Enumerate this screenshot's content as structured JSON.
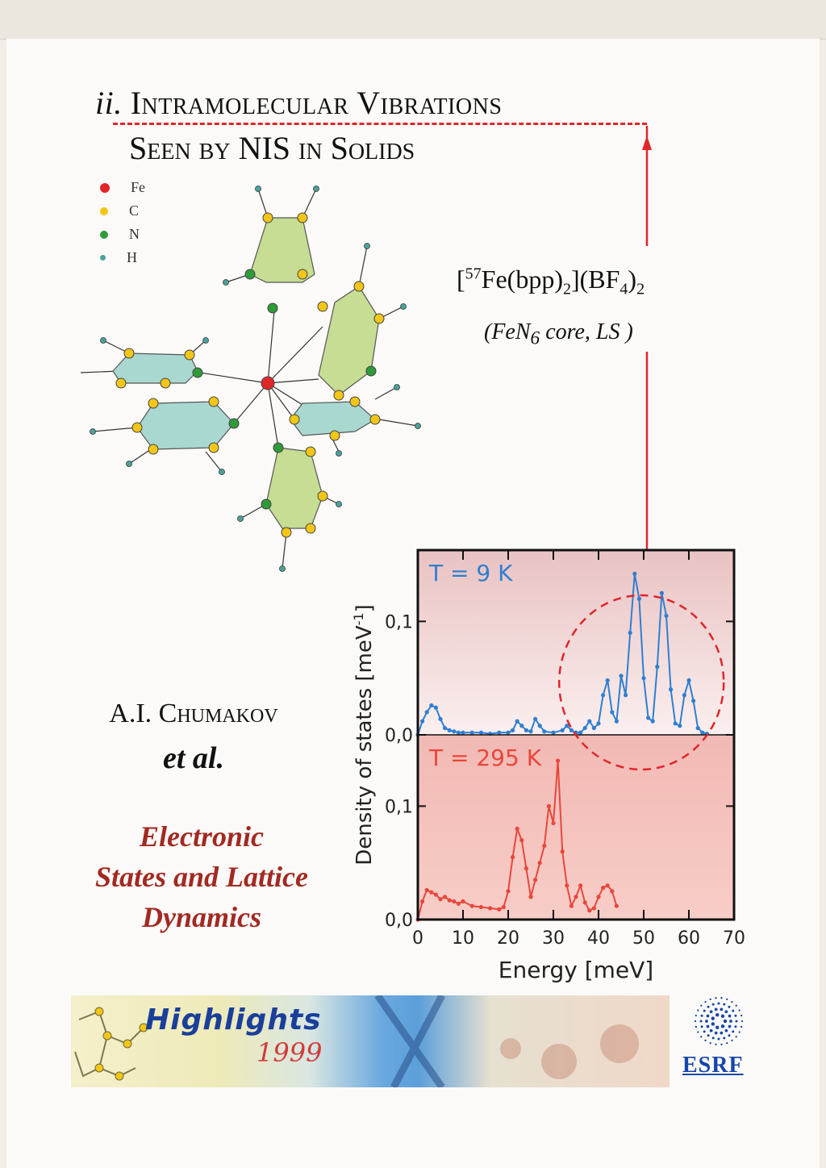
{
  "heading": {
    "prefix": "ii.",
    "line1": "Intramolecular Vibrations",
    "line2": "Seen by NIS in Solids"
  },
  "compound": {
    "iso": "57",
    "main": "Fe(bpp)",
    "sub1": "2",
    "mid": "](BF",
    "sub2": "4",
    "close": ")",
    "sub3": "2",
    "core_text": "(FeN",
    "core_sub": "6",
    "core_tail": " core, LS )"
  },
  "legend": [
    {
      "label": "Fe",
      "color": "#e1262a"
    },
    {
      "label": "C",
      "color": "#f2c617"
    },
    {
      "label": "N",
      "color": "#2f9a3a"
    },
    {
      "label": "H",
      "color": "#4aa39a"
    }
  ],
  "author": {
    "name": "A.I. Chumakov",
    "etal": "et al."
  },
  "subject_lines": [
    "Electronic",
    "States and Lattice",
    "Dynamics"
  ],
  "banner": {
    "title": "Highlights",
    "year": "1999"
  },
  "logo": {
    "text": "ESRF"
  },
  "chart_data": {
    "type": "line",
    "xlabel": "Energy [meV]",
    "ylabel": "Density of states [meV",
    "ylabel_sup": "-1",
    "ylabel_close": "]",
    "x_ticks": [
      "0",
      "10",
      "20",
      "30",
      "40",
      "50",
      "60",
      "70"
    ],
    "xlim": [
      0,
      70
    ],
    "panels": [
      {
        "name": "T = 9 K",
        "color": "#2f7fd0",
        "ylim": [
          0,
          0.16
        ],
        "y_ticks": [
          "0,0",
          "0,1"
        ],
        "x": [
          0,
          1,
          2,
          3,
          4,
          5,
          6,
          7,
          8,
          9,
          10,
          12,
          14,
          16,
          18,
          20,
          21,
          22,
          23,
          24,
          25,
          26,
          27,
          28,
          30,
          32,
          33,
          34,
          35,
          36,
          37,
          38,
          39,
          40,
          41,
          42,
          43,
          44,
          45,
          46,
          47,
          48,
          49,
          50,
          51,
          52,
          53,
          54,
          55,
          56,
          57,
          58,
          59,
          60,
          61,
          62,
          63,
          64
        ],
        "values": [
          0.0,
          0.012,
          0.02,
          0.026,
          0.024,
          0.014,
          0.006,
          0.004,
          0.003,
          0.002,
          0.002,
          0.002,
          0.002,
          0.001,
          0.002,
          0.002,
          0.004,
          0.012,
          0.008,
          0.004,
          0.003,
          0.014,
          0.008,
          0.003,
          0.002,
          0.004,
          0.008,
          0.004,
          0.002,
          0.002,
          0.006,
          0.012,
          0.006,
          0.01,
          0.035,
          0.048,
          0.02,
          0.012,
          0.052,
          0.035,
          0.09,
          0.142,
          0.12,
          0.05,
          0.015,
          0.012,
          0.06,
          0.125,
          0.105,
          0.04,
          0.01,
          0.008,
          0.035,
          0.048,
          0.03,
          0.006,
          0.002,
          0.001
        ]
      },
      {
        "name": "T = 295 K",
        "color": "#e8473b",
        "ylim": [
          0,
          0.16
        ],
        "y_ticks": [
          "0,0",
          "0,1"
        ],
        "x": [
          0,
          1,
          2,
          3,
          4,
          5,
          6,
          7,
          8,
          9,
          10,
          12,
          14,
          16,
          18,
          19,
          20,
          21,
          22,
          23,
          24,
          25,
          26,
          27,
          28,
          29,
          30,
          31,
          32,
          33,
          34,
          35,
          36,
          37,
          38,
          39,
          40,
          41,
          42,
          43,
          44
        ],
        "values": [
          0.0,
          0.016,
          0.026,
          0.024,
          0.022,
          0.018,
          0.02,
          0.017,
          0.016,
          0.014,
          0.016,
          0.012,
          0.011,
          0.01,
          0.009,
          0.011,
          0.025,
          0.055,
          0.08,
          0.07,
          0.045,
          0.02,
          0.035,
          0.05,
          0.065,
          0.1,
          0.085,
          0.14,
          0.06,
          0.03,
          0.012,
          0.02,
          0.03,
          0.015,
          0.008,
          0.01,
          0.02,
          0.028,
          0.03,
          0.025,
          0.012
        ]
      }
    ]
  }
}
